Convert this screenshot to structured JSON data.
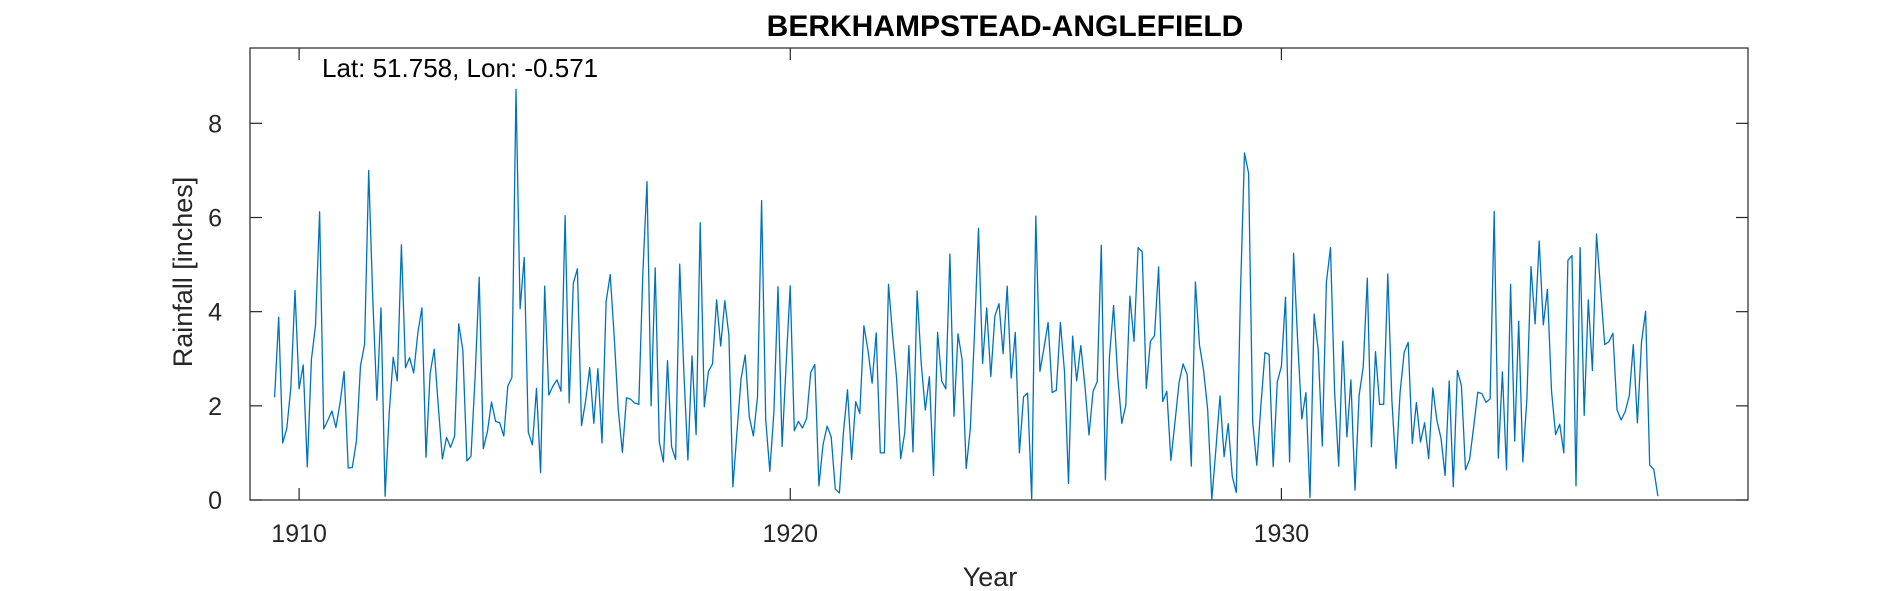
{
  "chart_data": {
    "type": "line",
    "title": "BERKHAMPSTEAD-ANGLEFIELD",
    "annotation": "Lat: 51.758, Lon: -0.571",
    "xlabel": "Year",
    "ylabel": "Rainfall [inches]",
    "xlim": [
      1909,
      1939.5
    ],
    "ylim": [
      0,
      9.6
    ],
    "xticks": [
      1910,
      1920,
      1930
    ],
    "yticks": [
      0,
      2,
      4,
      6,
      8
    ],
    "x_tick_labels": [
      "1910",
      "1920",
      "1930"
    ],
    "y_tick_labels": [
      "0",
      "2",
      "4",
      "6",
      "8"
    ],
    "grid": false,
    "line_color": "#0072BD",
    "series": [
      {
        "x_start": 1909.5,
        "x_step": 0.08333,
        "values": [
          2.18,
          3.88,
          1.21,
          1.52,
          2.4,
          4.45,
          2.36,
          2.87,
          0.7,
          2.98,
          3.71,
          6.12,
          1.51,
          1.69,
          1.89,
          1.54,
          2.05,
          2.73,
          0.68,
          0.69,
          1.25,
          2.85,
          3.31,
          7.0,
          4.25,
          2.12,
          4.08,
          0.08,
          1.84,
          3.03,
          2.53,
          5.42,
          2.81,
          3.02,
          2.7,
          3.54,
          4.08,
          0.91,
          2.68,
          3.2,
          1.99,
          0.87,
          1.33,
          1.12,
          1.35,
          3.74,
          3.19,
          0.83,
          0.93,
          2.61,
          4.73,
          1.09,
          1.45,
          2.08,
          1.67,
          1.64,
          1.36,
          2.42,
          2.6,
          8.72,
          4.06,
          5.15,
          1.44,
          1.17,
          2.37,
          0.58,
          4.54,
          2.23,
          2.42,
          2.55,
          2.31,
          6.04,
          2.06,
          4.6,
          4.91,
          1.58,
          2.1,
          2.81,
          1.63,
          2.79,
          1.21,
          4.21,
          4.79,
          3.44,
          1.91,
          1.01,
          2.17,
          2.14,
          2.06,
          2.03,
          4.85,
          6.76,
          2.0,
          4.93,
          1.23,
          0.81,
          2.96,
          1.13,
          0.86,
          5.01,
          2.75,
          0.85,
          3.06,
          1.39,
          5.89,
          1.98,
          2.73,
          2.89,
          4.25,
          3.27,
          4.23,
          3.5,
          0.28,
          1.45,
          2.58,
          3.08,
          1.77,
          1.36,
          2.19,
          6.36,
          1.71,
          0.61,
          1.87,
          4.53,
          1.14,
          2.87,
          4.55,
          1.47,
          1.67,
          1.53,
          1.73,
          2.71,
          2.88,
          0.3,
          1.17,
          1.57,
          1.34,
          0.23,
          0.15,
          1.42,
          2.34,
          0.86,
          2.09,
          1.84,
          3.7,
          3.18,
          2.48,
          3.55,
          1.0,
          1.0,
          4.58,
          3.5,
          2.56,
          0.88,
          1.44,
          3.28,
          1.02,
          4.44,
          2.91,
          1.91,
          2.62,
          0.52,
          3.56,
          2.53,
          2.36,
          5.22,
          1.78,
          3.53,
          2.98,
          0.67,
          1.51,
          3.49,
          5.77,
          2.9,
          4.08,
          2.62,
          3.91,
          4.17,
          3.11,
          4.54,
          2.59,
          3.56,
          1.0,
          2.19,
          2.27,
          0.0,
          6.03,
          2.73,
          3.23,
          3.77,
          2.28,
          2.33,
          3.77,
          2.72,
          0.35,
          3.48,
          2.53,
          3.28,
          2.43,
          1.38,
          2.31,
          2.51,
          5.41,
          0.43,
          3.05,
          4.13,
          2.63,
          1.63,
          2.01,
          4.33,
          3.37,
          5.36,
          5.27,
          2.37,
          3.37,
          3.49,
          4.95,
          2.09,
          2.31,
          0.84,
          1.66,
          2.5,
          2.89,
          2.66,
          0.72,
          4.63,
          3.29,
          2.75,
          1.91,
          0.01,
          1.08,
          2.21,
          0.92,
          1.62,
          0.5,
          0.16,
          4.34,
          7.37,
          6.94,
          1.65,
          0.74,
          2.01,
          3.13,
          3.09,
          0.71,
          2.51,
          2.84,
          4.31,
          0.81,
          5.24,
          3.36,
          1.72,
          2.28,
          0.05,
          3.95,
          3.19,
          1.15,
          4.63,
          5.36,
          2.3,
          0.72,
          3.37,
          1.34,
          2.55,
          0.21,
          2.22,
          2.82,
          4.71,
          1.13,
          3.15,
          2.03,
          2.03,
          4.8,
          2.11,
          0.67,
          2.29,
          3.14,
          3.35,
          1.2,
          2.07,
          1.23,
          1.64,
          0.88,
          2.38,
          1.69,
          1.31,
          0.52,
          2.53,
          0.28,
          2.75,
          2.43,
          0.64,
          0.86,
          1.56,
          2.29,
          2.26,
          2.07,
          2.15,
          6.13,
          0.89,
          2.72,
          0.64,
          4.58,
          1.25,
          3.8,
          0.81,
          2.15,
          4.96,
          3.74,
          5.5,
          3.72,
          4.47,
          2.32,
          1.39,
          1.61,
          1.0,
          5.09,
          5.19,
          0.3,
          5.36,
          1.8,
          4.25,
          2.75,
          5.65,
          4.47,
          3.3,
          3.36,
          3.54,
          1.92,
          1.7,
          1.88,
          2.22,
          3.3,
          1.64,
          3.35,
          4.01,
          0.74,
          0.65,
          0.08
        ]
      }
    ]
  }
}
